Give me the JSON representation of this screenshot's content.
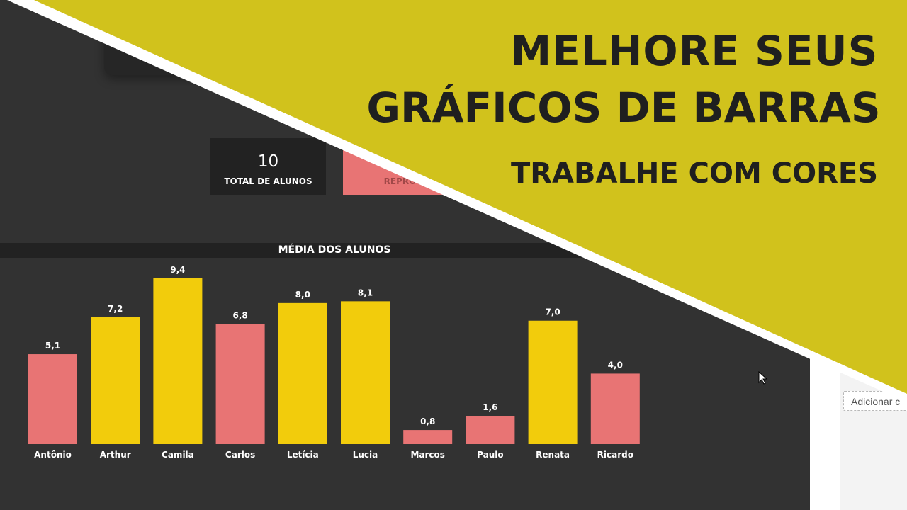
{
  "kpis": {
    "total_value": "10",
    "total_label": "TOTAL DE ALUNOS",
    "reprov_label": "REPROV"
  },
  "side_panel": {
    "add_field_label": "Adicionar c"
  },
  "banner": {
    "line1": "MELHORE SEUS",
    "line2": "GRÁFICOS DE BARRAS",
    "line3": "TRABALHE COM CORES",
    "color": "#d1c21c"
  },
  "colors": {
    "background": "#323232",
    "pass": "#f2cc0c",
    "fail": "#e87474",
    "label": "#ffffff"
  },
  "chart_data": {
    "type": "bar",
    "title": "MÉDIA DOS ALUNOS",
    "categories": [
      "Antônio",
      "Arthur",
      "Camila",
      "Carlos",
      "Letícia",
      "Lucia",
      "Marcos",
      "Paulo",
      "Renata",
      "Ricardo"
    ],
    "values": [
      5.1,
      7.2,
      9.4,
      6.8,
      8.0,
      8.1,
      0.8,
      1.6,
      7.0,
      4.0
    ],
    "value_labels": [
      "5,1",
      "7,2",
      "9,4",
      "6,8",
      "8,0",
      "8,1",
      "0,8",
      "1,6",
      "7,0",
      "4,0"
    ],
    "color_rule": "value >= 7 highlighted",
    "threshold": 7,
    "ylim": [
      0,
      9.4
    ],
    "grid": false,
    "legend": "none"
  }
}
